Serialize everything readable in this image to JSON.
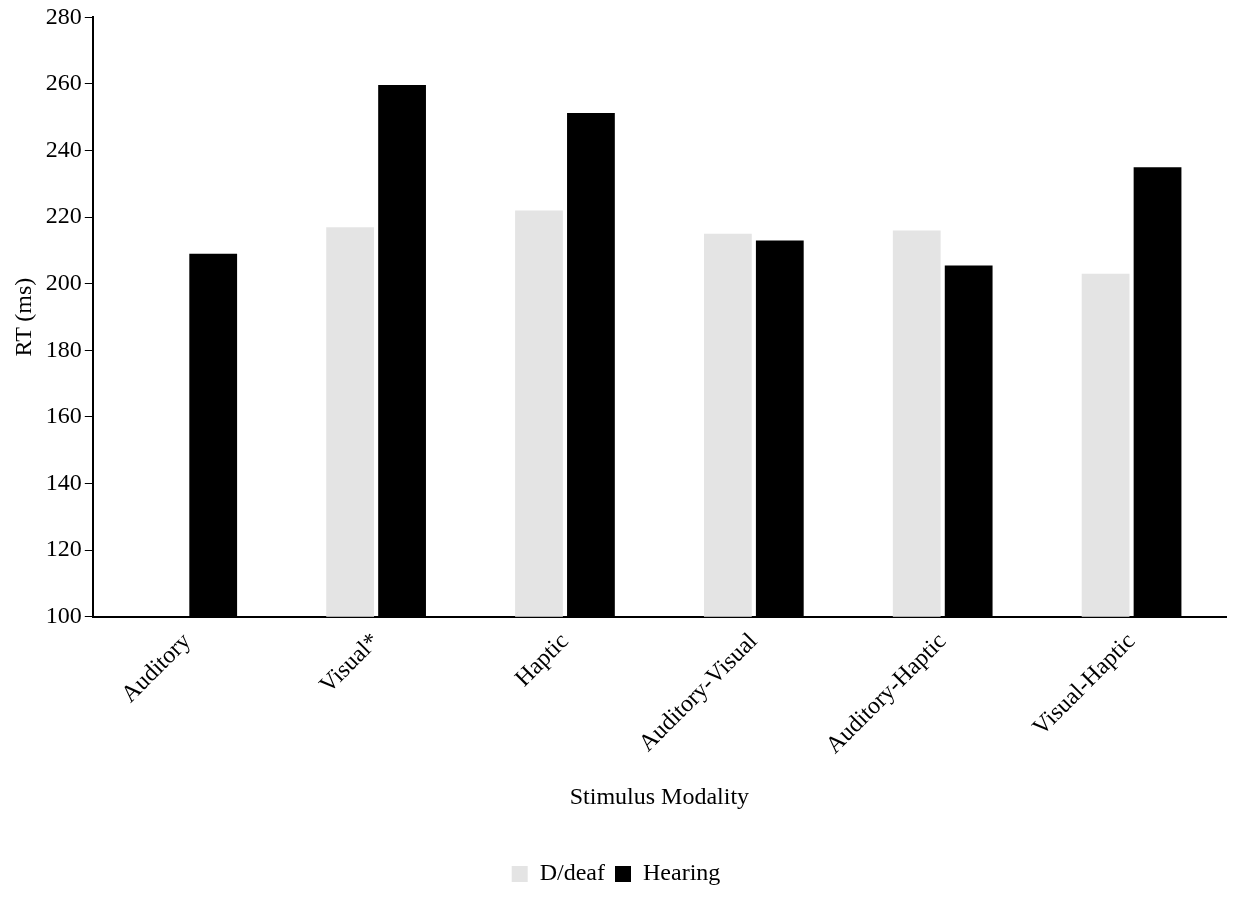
{
  "chart_data": {
    "type": "bar",
    "xlabel": "Stimulus Modality",
    "ylabel": "RT (ms)",
    "categories": [
      "Auditory",
      "Visual*",
      "Haptic",
      "Auditory-Visual",
      "Auditory-Haptic",
      "Visual-Haptic"
    ],
    "series": [
      {
        "name": "D/deaf",
        "color": "#e4e4e4",
        "values": [
          null,
          217,
          222,
          215,
          216,
          203
        ]
      },
      {
        "name": "Hearing",
        "color": "#000000",
        "values": [
          209,
          259.7,
          251.3,
          213,
          205.5,
          235
        ]
      }
    ],
    "ylim": [
      100,
      280
    ],
    "yticks": [
      100,
      120,
      140,
      160,
      180,
      200,
      220,
      240,
      260,
      280
    ],
    "grid": false,
    "legend": "bottom"
  }
}
